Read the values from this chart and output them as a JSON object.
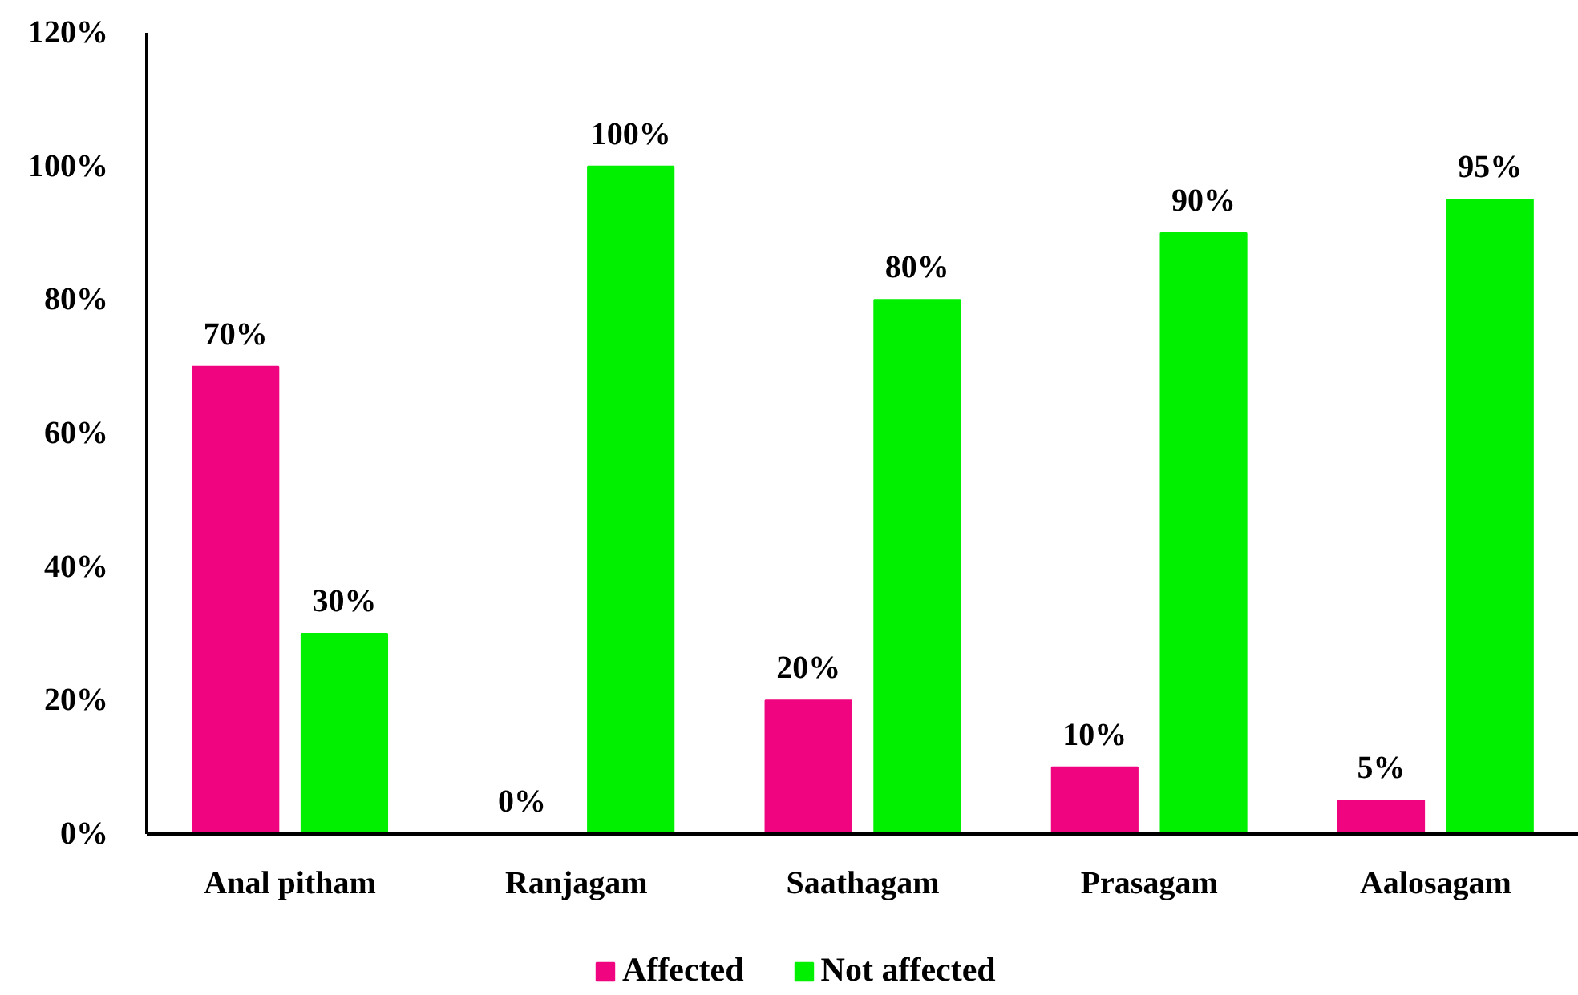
{
  "chart_data": {
    "type": "bar",
    "categories": [
      "Anal pitham",
      "Ranjagam",
      "Saathagam",
      "Prasagam",
      "Aalosagam"
    ],
    "series": [
      {
        "name": "Affected",
        "color": "#f0047f",
        "values": [
          70,
          0,
          20,
          10,
          5
        ],
        "value_labels": [
          "70%",
          "0%",
          "20%",
          "10%",
          "5%"
        ]
      },
      {
        "name": "Not affected",
        "color": "#00f000",
        "values": [
          30,
          100,
          80,
          90,
          95
        ],
        "value_labels": [
          "30%",
          "100%",
          "80%",
          "90%",
          "95%"
        ]
      }
    ],
    "ylim": [
      0,
      120
    ],
    "yticks": [
      {
        "value": 0,
        "label": "0%"
      },
      {
        "value": 20,
        "label": "20%"
      },
      {
        "value": 40,
        "label": "40%"
      },
      {
        "value": 60,
        "label": "60%"
      },
      {
        "value": 80,
        "label": "80%"
      },
      {
        "value": 100,
        "label": "100%"
      },
      {
        "value": 120,
        "label": "120%"
      }
    ],
    "grid": false,
    "legend": "bottom"
  }
}
